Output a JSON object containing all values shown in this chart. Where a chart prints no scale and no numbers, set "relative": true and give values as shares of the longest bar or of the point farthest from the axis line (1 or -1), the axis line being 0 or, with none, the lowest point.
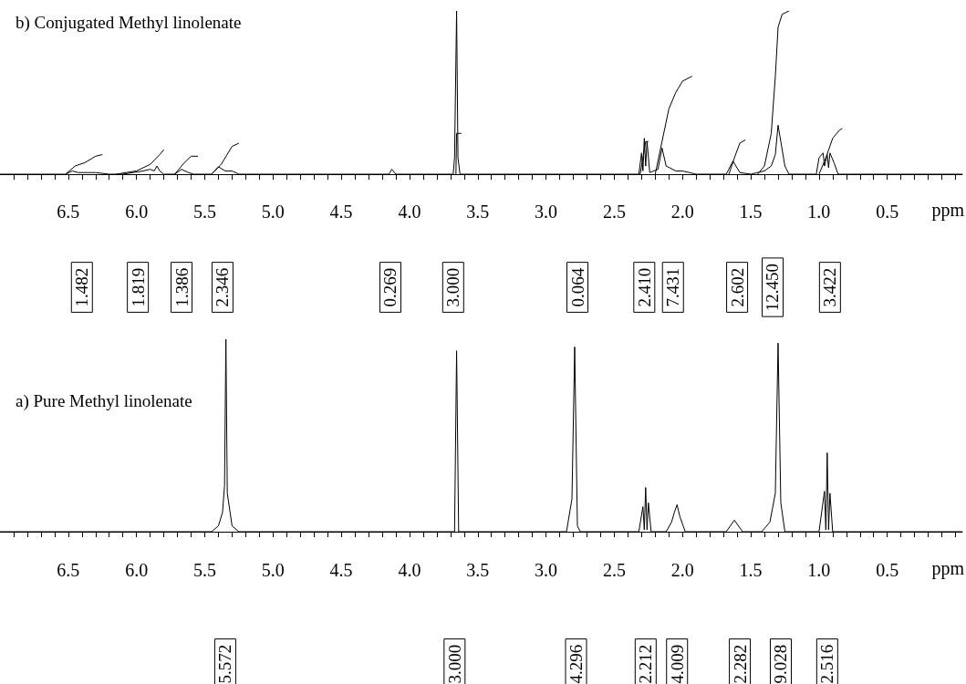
{
  "chart_data": [
    {
      "type": "line",
      "relative": true,
      "title": "b) Conjugated Methyl linolenate",
      "xlabel": "ppm",
      "xlim": [
        7.0,
        -0.05
      ],
      "xticks": [
        {
          "value": 6.9,
          "label": null
        },
        {
          "value": 6.8,
          "label": null
        },
        {
          "value": 6.7,
          "label": null
        },
        {
          "value": 6.6,
          "label": null
        },
        6.5,
        {
          "value": 6.4,
          "label": null
        },
        {
          "value": 6.3,
          "label": null
        },
        {
          "value": 6.2,
          "label": null
        },
        {
          "value": 6.1,
          "label": null
        },
        {
          "value": 6,
          "label": "6.0"
        },
        {
          "value": 5.9,
          "label": null
        },
        {
          "value": 5.8,
          "label": null
        },
        {
          "value": 5.7,
          "label": null
        },
        {
          "value": 5.6,
          "label": null
        },
        5.5,
        {
          "value": 5.4,
          "label": null
        },
        {
          "value": 5.3,
          "label": null
        },
        {
          "value": 5.2,
          "label": null
        },
        {
          "value": 5.1,
          "label": null
        },
        {
          "value": 5,
          "label": "5.0"
        },
        {
          "value": 4.9,
          "label": null
        },
        {
          "value": 4.8,
          "label": null
        },
        {
          "value": 4.7,
          "label": null
        },
        {
          "value": 4.6,
          "label": null
        },
        4.5,
        {
          "value": 4.4,
          "label": null
        },
        {
          "value": 4.3,
          "label": null
        },
        {
          "value": 4.2,
          "label": null
        },
        {
          "value": 4.1,
          "label": null
        },
        {
          "value": 4,
          "label": "4.0"
        },
        {
          "value": 3.9,
          "label": null
        },
        {
          "value": 3.8,
          "label": null
        },
        {
          "value": 3.7,
          "label": null
        },
        {
          "value": 3.6,
          "label": null
        },
        3.5,
        {
          "value": 3.4,
          "label": null
        },
        {
          "value": 3.3,
          "label": null
        },
        {
          "value": 3.2,
          "label": null
        },
        {
          "value": 3.1,
          "label": null
        },
        {
          "value": 3,
          "label": "3.0"
        },
        {
          "value": 2.9,
          "label": null
        },
        {
          "value": 2.8,
          "label": null
        },
        {
          "value": 2.7,
          "label": null
        },
        {
          "value": 2.6,
          "label": null
        },
        2.5,
        {
          "value": 2.4,
          "label": null
        },
        {
          "value": 2.3,
          "label": null
        },
        {
          "value": 2.2,
          "label": null
        },
        {
          "value": 2.1,
          "label": null
        },
        {
          "value": 2,
          "label": "2.0"
        },
        {
          "value": 1.9,
          "label": null
        },
        {
          "value": 1.8,
          "label": null
        },
        {
          "value": 1.7,
          "label": null
        },
        {
          "value": 1.6,
          "label": null
        },
        1.5,
        {
          "value": 1.4,
          "label": null
        },
        {
          "value": 1.3,
          "label": null
        },
        {
          "value": 1.2,
          "label": null
        },
        {
          "value": 1.1,
          "label": null
        },
        {
          "value": 1,
          "label": "1.0"
        },
        {
          "value": 0.9,
          "label": null
        },
        {
          "value": 0.8,
          "label": null
        },
        {
          "value": 0.7,
          "label": null
        },
        {
          "value": 0.6,
          "label": null
        },
        0.5,
        {
          "value": 0.4,
          "label": null
        },
        {
          "value": 0.3,
          "label": null
        },
        {
          "value": 0.2,
          "label": null
        },
        {
          "value": 0.1,
          "label": null
        },
        {
          "value": 0,
          "label": null
        }
      ],
      "series": [
        {
          "color": "#000000",
          "x": [
            7.0,
            6.52,
            6.47,
            6.43,
            6.35,
            6.3,
            6.2,
            6.1,
            5.95,
            5.9,
            5.87,
            5.85,
            5.83,
            5.8,
            5.72,
            5.67,
            5.62,
            5.58,
            5.45,
            5.4,
            5.35,
            5.3,
            5.25,
            4.15,
            4.13,
            4.1,
            3.68,
            3.67,
            3.655,
            3.645,
            3.63,
            2.32,
            2.3,
            2.29,
            2.28,
            2.27,
            2.26,
            2.24,
            2.18,
            2.15,
            2.12,
            2.05,
            2.0,
            1.95,
            1.9,
            1.68,
            1.63,
            1.58,
            1.5,
            1.45,
            1.4,
            1.35,
            1.32,
            1.3,
            1.28,
            1.25,
            1.22,
            1.02,
            1.0,
            0.97,
            0.96,
            0.94,
            0.93,
            0.92,
            0.89,
            0.86,
            -0.05
          ],
          "values": [
            0,
            0,
            0.02,
            0.01,
            0.01,
            0.01,
            0,
            0,
            0.02,
            0.03,
            0.02,
            0.05,
            0.02,
            0,
            0,
            0.03,
            0.01,
            0,
            0,
            0.045,
            0.02,
            0.02,
            0,
            0,
            0.03,
            0,
            0,
            0.1,
            1,
            0.1,
            0,
            0,
            0.13,
            0.02,
            0.22,
            0.05,
            0.2,
            0.01,
            0.03,
            0.16,
            0.05,
            0.02,
            0.02,
            0.01,
            0,
            0,
            0.08,
            0.01,
            0,
            0.01,
            0.02,
            0.05,
            0.12,
            0.3,
            0.2,
            0.05,
            0,
            0,
            0.1,
            0.13,
            0.05,
            0.12,
            0.04,
            0.13,
            0.07,
            0,
            0
          ]
        },
        {
          "color": "#000000",
          "x": [
            6.52,
            6.45,
            6.38,
            6.3,
            6.25,
            6.2,
            6.15,
            6.0,
            5.9,
            5.83,
            5.8,
            5.76,
            5.72,
            5.65,
            5.6,
            5.55,
            5.5,
            5.45,
            5.38,
            5.3,
            5.25,
            4.0,
            3.66,
            3.655,
            3.62,
            3.0,
            2.31,
            2.27,
            2.25,
            2.22,
            2.2,
            2.15,
            2.1,
            2.05,
            2.0,
            1.93,
            1.8,
            1.66,
            1.62,
            1.58,
            1.54,
            1.5,
            1.45,
            1.4,
            1.35,
            1.32,
            1.3,
            1.27,
            1.22,
            1.1,
            1.0,
            0.95,
            0.9,
            0.85,
            0.83
          ],
          "values": [
            0,
            0.05,
            0.07,
            0.11,
            0.12,
            null,
            0,
            0.02,
            0.06,
            0.12,
            0.15,
            null,
            0,
            0.07,
            0.11,
            0.11,
            null,
            0,
            0.06,
            0.17,
            0.19,
            null,
            0,
            0.25,
            0.25,
            null,
            0,
            0.2,
            0.2,
            null,
            0,
            0.2,
            0.4,
            0.5,
            0.57,
            0.6,
            null,
            0,
            0.1,
            0.19,
            0.21,
            null,
            0,
            0.05,
            0.25,
            0.6,
            0.9,
            0.98,
            1.0,
            null,
            0,
            0.1,
            0.22,
            0.27,
            0.28
          ]
        }
      ],
      "annotations": [
        "1.482",
        "1.819",
        "1.386",
        "2.346",
        "0.269",
        "3.000",
        "0.064",
        "2.410",
        "7.431",
        "2.602",
        "12.450",
        "3.422"
      ]
    },
    {
      "type": "line",
      "relative": true,
      "title": "a) Pure Methyl linolenate",
      "xlabel": "ppm",
      "xlim": [
        7.0,
        -0.05
      ],
      "xticks": [
        {
          "value": 6.9,
          "label": null
        },
        {
          "value": 6.8,
          "label": null
        },
        {
          "value": 6.7,
          "label": null
        },
        {
          "value": 6.6,
          "label": null
        },
        6.5,
        {
          "value": 6.4,
          "label": null
        },
        {
          "value": 6.3,
          "label": null
        },
        {
          "value": 6.2,
          "label": null
        },
        {
          "value": 6.1,
          "label": null
        },
        {
          "value": 6,
          "label": "6.0"
        },
        {
          "value": 5.9,
          "label": null
        },
        {
          "value": 5.8,
          "label": null
        },
        {
          "value": 5.7,
          "label": null
        },
        {
          "value": 5.6,
          "label": null
        },
        5.5,
        {
          "value": 5.4,
          "label": null
        },
        {
          "value": 5.3,
          "label": null
        },
        {
          "value": 5.2,
          "label": null
        },
        {
          "value": 5.1,
          "label": null
        },
        {
          "value": 5,
          "label": "5.0"
        },
        {
          "value": 4.9,
          "label": null
        },
        {
          "value": 4.8,
          "label": null
        },
        {
          "value": 4.7,
          "label": null
        },
        {
          "value": 4.6,
          "label": null
        },
        4.5,
        {
          "value": 4.4,
          "label": null
        },
        {
          "value": 4.3,
          "label": null
        },
        {
          "value": 4.2,
          "label": null
        },
        {
          "value": 4.1,
          "label": null
        },
        {
          "value": 4,
          "label": "4.0"
        },
        {
          "value": 3.9,
          "label": null
        },
        {
          "value": 3.8,
          "label": null
        },
        {
          "value": 3.7,
          "label": null
        },
        {
          "value": 3.6,
          "label": null
        },
        3.5,
        {
          "value": 3.4,
          "label": null
        },
        {
          "value": 3.3,
          "label": null
        },
        {
          "value": 3.2,
          "label": null
        },
        {
          "value": 3.1,
          "label": null
        },
        {
          "value": 3,
          "label": "3.0"
        },
        {
          "value": 2.9,
          "label": null
        },
        {
          "value": 2.8,
          "label": null
        },
        {
          "value": 2.7,
          "label": null
        },
        {
          "value": 2.6,
          "label": null
        },
        2.5,
        {
          "value": 2.4,
          "label": null
        },
        {
          "value": 2.3,
          "label": null
        },
        {
          "value": 2.2,
          "label": null
        },
        {
          "value": 2.1,
          "label": null
        },
        {
          "value": 2,
          "label": "2.0"
        },
        {
          "value": 1.9,
          "label": null
        },
        {
          "value": 1.8,
          "label": null
        },
        {
          "value": 1.7,
          "label": null
        },
        {
          "value": 1.6,
          "label": null
        },
        1.5,
        {
          "value": 1.4,
          "label": null
        },
        {
          "value": 1.3,
          "label": null
        },
        {
          "value": 1.2,
          "label": null
        },
        {
          "value": 1.1,
          "label": null
        },
        {
          "value": 1,
          "label": "1.0"
        },
        {
          "value": 0.9,
          "label": null
        },
        {
          "value": 0.8,
          "label": null
        },
        {
          "value": 0.7,
          "label": null
        },
        {
          "value": 0.6,
          "label": null
        },
        0.5,
        {
          "value": 0.4,
          "label": null
        },
        {
          "value": 0.3,
          "label": null
        },
        {
          "value": 0.2,
          "label": null
        },
        {
          "value": 0.1,
          "label": null
        },
        {
          "value": 0,
          "label": null
        }
      ],
      "series": [
        {
          "color": "#000000",
          "x": [
            7.0,
            5.45,
            5.4,
            5.37,
            5.355,
            5.345,
            5.335,
            5.3,
            5.25,
            3.67,
            3.655,
            3.64,
            2.85,
            2.81,
            2.79,
            2.77,
            2.75,
            2.32,
            2.29,
            2.28,
            2.27,
            2.26,
            2.25,
            2.23,
            2.12,
            2.08,
            2.06,
            2.04,
            2.02,
            1.98,
            1.68,
            1.62,
            1.56,
            1.42,
            1.36,
            1.32,
            1.3,
            1.28,
            1.25,
            1.0,
            0.96,
            0.95,
            0.94,
            0.93,
            0.92,
            0.9,
            -0.05
          ],
          "values": [
            0,
            0,
            0.03,
            0.1,
            0.24,
            1,
            0.2,
            0.03,
            0,
            0,
            0.94,
            0,
            0,
            0.17,
            0.96,
            0.03,
            0,
            0,
            0.13,
            0.01,
            0.23,
            0.01,
            0.15,
            0,
            0,
            0.05,
            0.1,
            0.14,
            0.08,
            0,
            0,
            0.06,
            0,
            0,
            0.05,
            0.2,
            0.98,
            0.15,
            0,
            0,
            0.21,
            0.01,
            0.41,
            0.01,
            0.2,
            0,
            0
          ]
        }
      ],
      "annotations": [
        "5.572",
        "3.000",
        "4.296",
        "2.212",
        "4.009",
        "2.282",
        "9.028",
        "2.516"
      ]
    }
  ]
}
